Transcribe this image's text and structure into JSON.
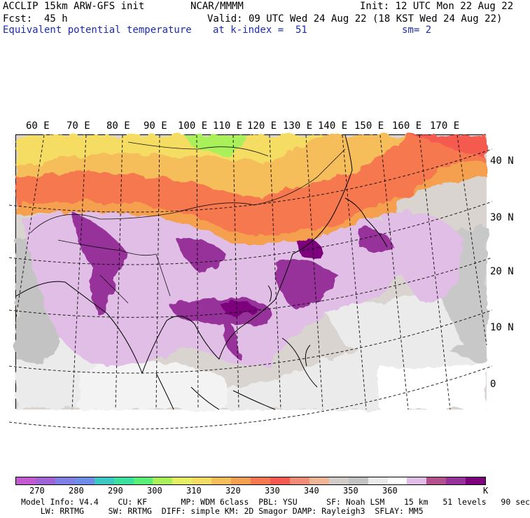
{
  "header": {
    "model": "ACCLIP 15km ARW-GFS init",
    "org": "NCAR/MMMM",
    "init": "Init: 12 UTC Mon 22 Aug 22",
    "fcst": "Fcst:  45 h",
    "valid": "Valid: 09 UTC Wed 24 Aug 22 (18 KST Wed 24 Aug 22)",
    "field": "Equivalent potential temperature",
    "level": "at k-index =  51",
    "smooth": "sm= 2"
  },
  "map": {
    "lon_labels": [
      "60 E",
      "70 E",
      "80 E",
      "90 E",
      "100 E",
      "110 E",
      "120 E",
      "130 E",
      "140 E",
      "150 E",
      "160 E",
      "170 E"
    ],
    "lat_labels": [
      "40 N",
      "30 N",
      "20 N",
      "10 N",
      "0"
    ]
  },
  "colorbar": {
    "colors": [
      "#c35ad2",
      "#a064d7",
      "#7f7fe6",
      "#6e8ce8",
      "#3cc8c3",
      "#3ce1a0",
      "#5af078",
      "#aaf05a",
      "#e6f064",
      "#f5dc64",
      "#f5be5a",
      "#f5a050",
      "#f57850",
      "#f55a50",
      "#f08c78",
      "#f0b496",
      "#d2cdc8",
      "#c3c3c3",
      "#ebebeb",
      "#ffffff",
      "#e1bee6",
      "#b4508c",
      "#96329a",
      "#7d007d"
    ],
    "ticks": [
      "270",
      "280",
      "290",
      "300",
      "310",
      "320",
      "330",
      "340",
      "350",
      "360"
    ],
    "unit": "K"
  },
  "footer": {
    "line1": "Model Info: V4.4    CU: KF       MP: WDM 6class  PBL: YSU      SF: Noah LSM    15 km   51 levels   90 sec",
    "line2": "    LW: RRTMG     SW: RRTMG  DIFF: simple KM: 2D Smagor DAMP: Rayleigh3  SFLAY: MM5"
  }
}
